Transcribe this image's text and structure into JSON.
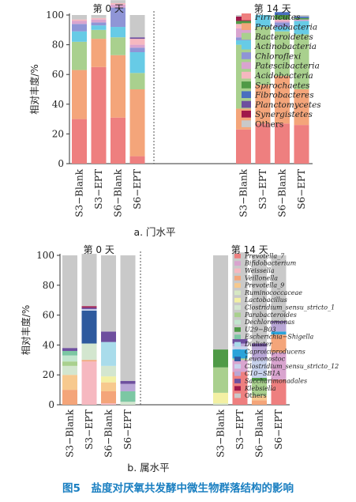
{
  "figure": {
    "caption": "图5　盐度对厌氧共发酵中微生物群落结构的影响"
  },
  "chart_data": [
    {
      "type": "bar",
      "stacked": true,
      "subtitle": "a. 门水平",
      "ylabel": "相对丰度/%",
      "ylim": [
        0,
        100
      ],
      "yticks": [
        0,
        20,
        40,
        60,
        80,
        100
      ],
      "groups": [
        {
          "label": "第 0 天",
          "categories": [
            "S3−Blank",
            "S3−EPT",
            "S6−Blank",
            "S6−EPT"
          ]
        },
        {
          "label": "第 14 天",
          "categories": [
            "S3−Blank",
            "S3−EPT",
            "S6−Blank",
            "S6−EPT"
          ]
        }
      ],
      "legend_position": "right",
      "series": [
        {
          "name": "Firmicutes",
          "color": "#ee7f7f",
          "values": [
            30,
            65,
            31,
            5,
            23,
            27,
            27,
            26
          ]
        },
        {
          "name": "Proteobacteria",
          "color": "#f4a57a",
          "values": [
            33,
            19,
            42,
            45,
            14,
            26,
            32,
            24
          ]
        },
        {
          "name": "Bacteroidetes",
          "color": "#a9d08e",
          "values": [
            19,
            6,
            12,
            11,
            43,
            39,
            30,
            37
          ]
        },
        {
          "name": "Actinobacteria",
          "color": "#67cbe6",
          "values": [
            7,
            3,
            7,
            14,
            3,
            8,
            3,
            9
          ]
        },
        {
          "name": "Chloroflexi",
          "color": "#8f95d6",
          "values": [
            5,
            2,
            13,
            3,
            2,
            0,
            3,
            0
          ]
        },
        {
          "name": "Patescibacteria",
          "color": "#d9a4cf",
          "values": [
            2,
            2,
            2,
            2,
            6,
            0,
            1,
            1
          ]
        },
        {
          "name": "Acidobacteria",
          "color": "#f6b8c0",
          "values": [
            1,
            1,
            1,
            4,
            3,
            0,
            1,
            0
          ]
        },
        {
          "name": "Spirochaetes",
          "color": "#4f9a46",
          "values": [
            0,
            0,
            0,
            0,
            2,
            0,
            3,
            1
          ]
        },
        {
          "name": "Fibrobacteres",
          "color": "#4a6fbf",
          "values": [
            0,
            0,
            0,
            0,
            0,
            0,
            2,
            1
          ]
        },
        {
          "name": "Planctomycetes",
          "color": "#6e4f9e",
          "values": [
            0,
            0,
            0,
            1,
            0,
            0,
            0,
            0
          ]
        },
        {
          "name": "Synergistetes",
          "color": "#a0184a",
          "values": [
            0,
            0,
            0,
            0,
            3,
            0,
            0,
            0
          ]
        },
        {
          "name": "Others",
          "color": "#c9c9c9",
          "values": [
            3,
            2,
            2,
            15,
            1,
            0,
            0,
            1
          ]
        }
      ]
    },
    {
      "type": "bar",
      "stacked": true,
      "subtitle": "b. 属水平",
      "ylabel": "相对丰度/%",
      "ylim": [
        0,
        100
      ],
      "yticks": [
        0,
        20,
        40,
        60,
        80,
        100
      ],
      "groups": [
        {
          "label": "第 0 天",
          "categories": [
            "S3−Blank",
            "S3−EPT",
            "S6−Blank",
            "S6−EPT"
          ]
        },
        {
          "label": "第 14 天",
          "categories": [
            "S3−Blank",
            "S3−EPT",
            "S6−Blank",
            "S6−EPT"
          ]
        }
      ],
      "legend_position": "right",
      "series": [
        {
          "name": "Prevotella_7",
          "color": "#ee7f7f",
          "values": [
            0,
            0,
            0,
            0,
            0,
            22,
            0,
            17
          ]
        },
        {
          "name": "Bifidobacterium",
          "color": "#d9a4cf",
          "values": [
            0,
            0,
            0,
            0,
            0,
            8,
            0,
            18
          ]
        },
        {
          "name": "Weissella",
          "color": "#f6b8c0",
          "values": [
            0,
            29,
            1,
            0,
            0,
            0,
            0,
            0
          ]
        },
        {
          "name": "Veillonella",
          "color": "#f4a57a",
          "values": [
            10,
            1,
            8,
            0,
            0,
            0,
            3,
            12
          ]
        },
        {
          "name": "Prevotella_9",
          "color": "#f7c98e",
          "values": [
            10,
            0,
            6,
            0,
            0,
            0,
            3,
            0
          ]
        },
        {
          "name": "Ruminococcaceae",
          "color": "#d7e8c3",
          "values": [
            0,
            0,
            0,
            0,
            1,
            0,
            0,
            0
          ]
        },
        {
          "name": "Lactobacillus",
          "color": "#f3f0a3",
          "values": [
            0,
            0,
            4,
            0,
            7,
            0,
            0,
            0
          ]
        },
        {
          "name": "Clostridium_sensu_stricto_1",
          "color": "#d3e6cf",
          "values": [
            6,
            11,
            7,
            2,
            0,
            0,
            0,
            0
          ]
        },
        {
          "name": "Parabacteroides",
          "color": "#a9d08e",
          "values": [
            3,
            0,
            0,
            0,
            17,
            1,
            10,
            0
          ]
        },
        {
          "name": "Dechloromonas",
          "color": "#c2e6ce",
          "values": [
            4,
            0,
            0,
            0,
            0,
            0,
            0,
            0
          ]
        },
        {
          "name": "U29−B03",
          "color": "#4f9a46",
          "values": [
            0,
            0,
            0,
            0,
            12,
            0,
            2,
            0
          ]
        },
        {
          "name": "Escherichia−Shigella",
          "color": "#7cc7a3",
          "values": [
            3,
            0,
            0,
            7,
            0,
            0,
            0,
            0
          ]
        },
        {
          "name": "Dialister",
          "color": "#a9dceb",
          "values": [
            0,
            0,
            16,
            0,
            0,
            0,
            0,
            0
          ]
        },
        {
          "name": "Caproiciproducens",
          "color": "#2aa3d9",
          "values": [
            0,
            0,
            0,
            0,
            0,
            6,
            0,
            2
          ]
        },
        {
          "name": "Leuconostoc",
          "color": "#2e5a9e",
          "values": [
            0,
            22,
            0,
            0,
            0,
            0,
            0,
            0
          ]
        },
        {
          "name": "Clostridium_sensu_stricto_12",
          "color": "#c7d2ec",
          "values": [
            0,
            1,
            0,
            0,
            0,
            2,
            12,
            0
          ]
        },
        {
          "name": "C10−SB1A",
          "color": "#b9a7d6",
          "values": [
            0,
            0,
            0,
            5,
            0,
            2,
            9,
            6
          ]
        },
        {
          "name": "Saccharimonadales",
          "color": "#6e4f9e",
          "values": [
            2,
            1,
            7,
            2,
            0,
            3,
            2,
            1
          ]
        },
        {
          "name": "Klebsiella",
          "color": "#a0184a",
          "values": [
            0,
            1,
            0,
            0,
            0,
            0,
            0,
            0
          ]
        },
        {
          "name": "Others",
          "color": "#c9c9c9",
          "values": [
            62,
            35,
            51,
            84,
            63,
            58,
            59,
            44
          ]
        }
      ]
    }
  ]
}
